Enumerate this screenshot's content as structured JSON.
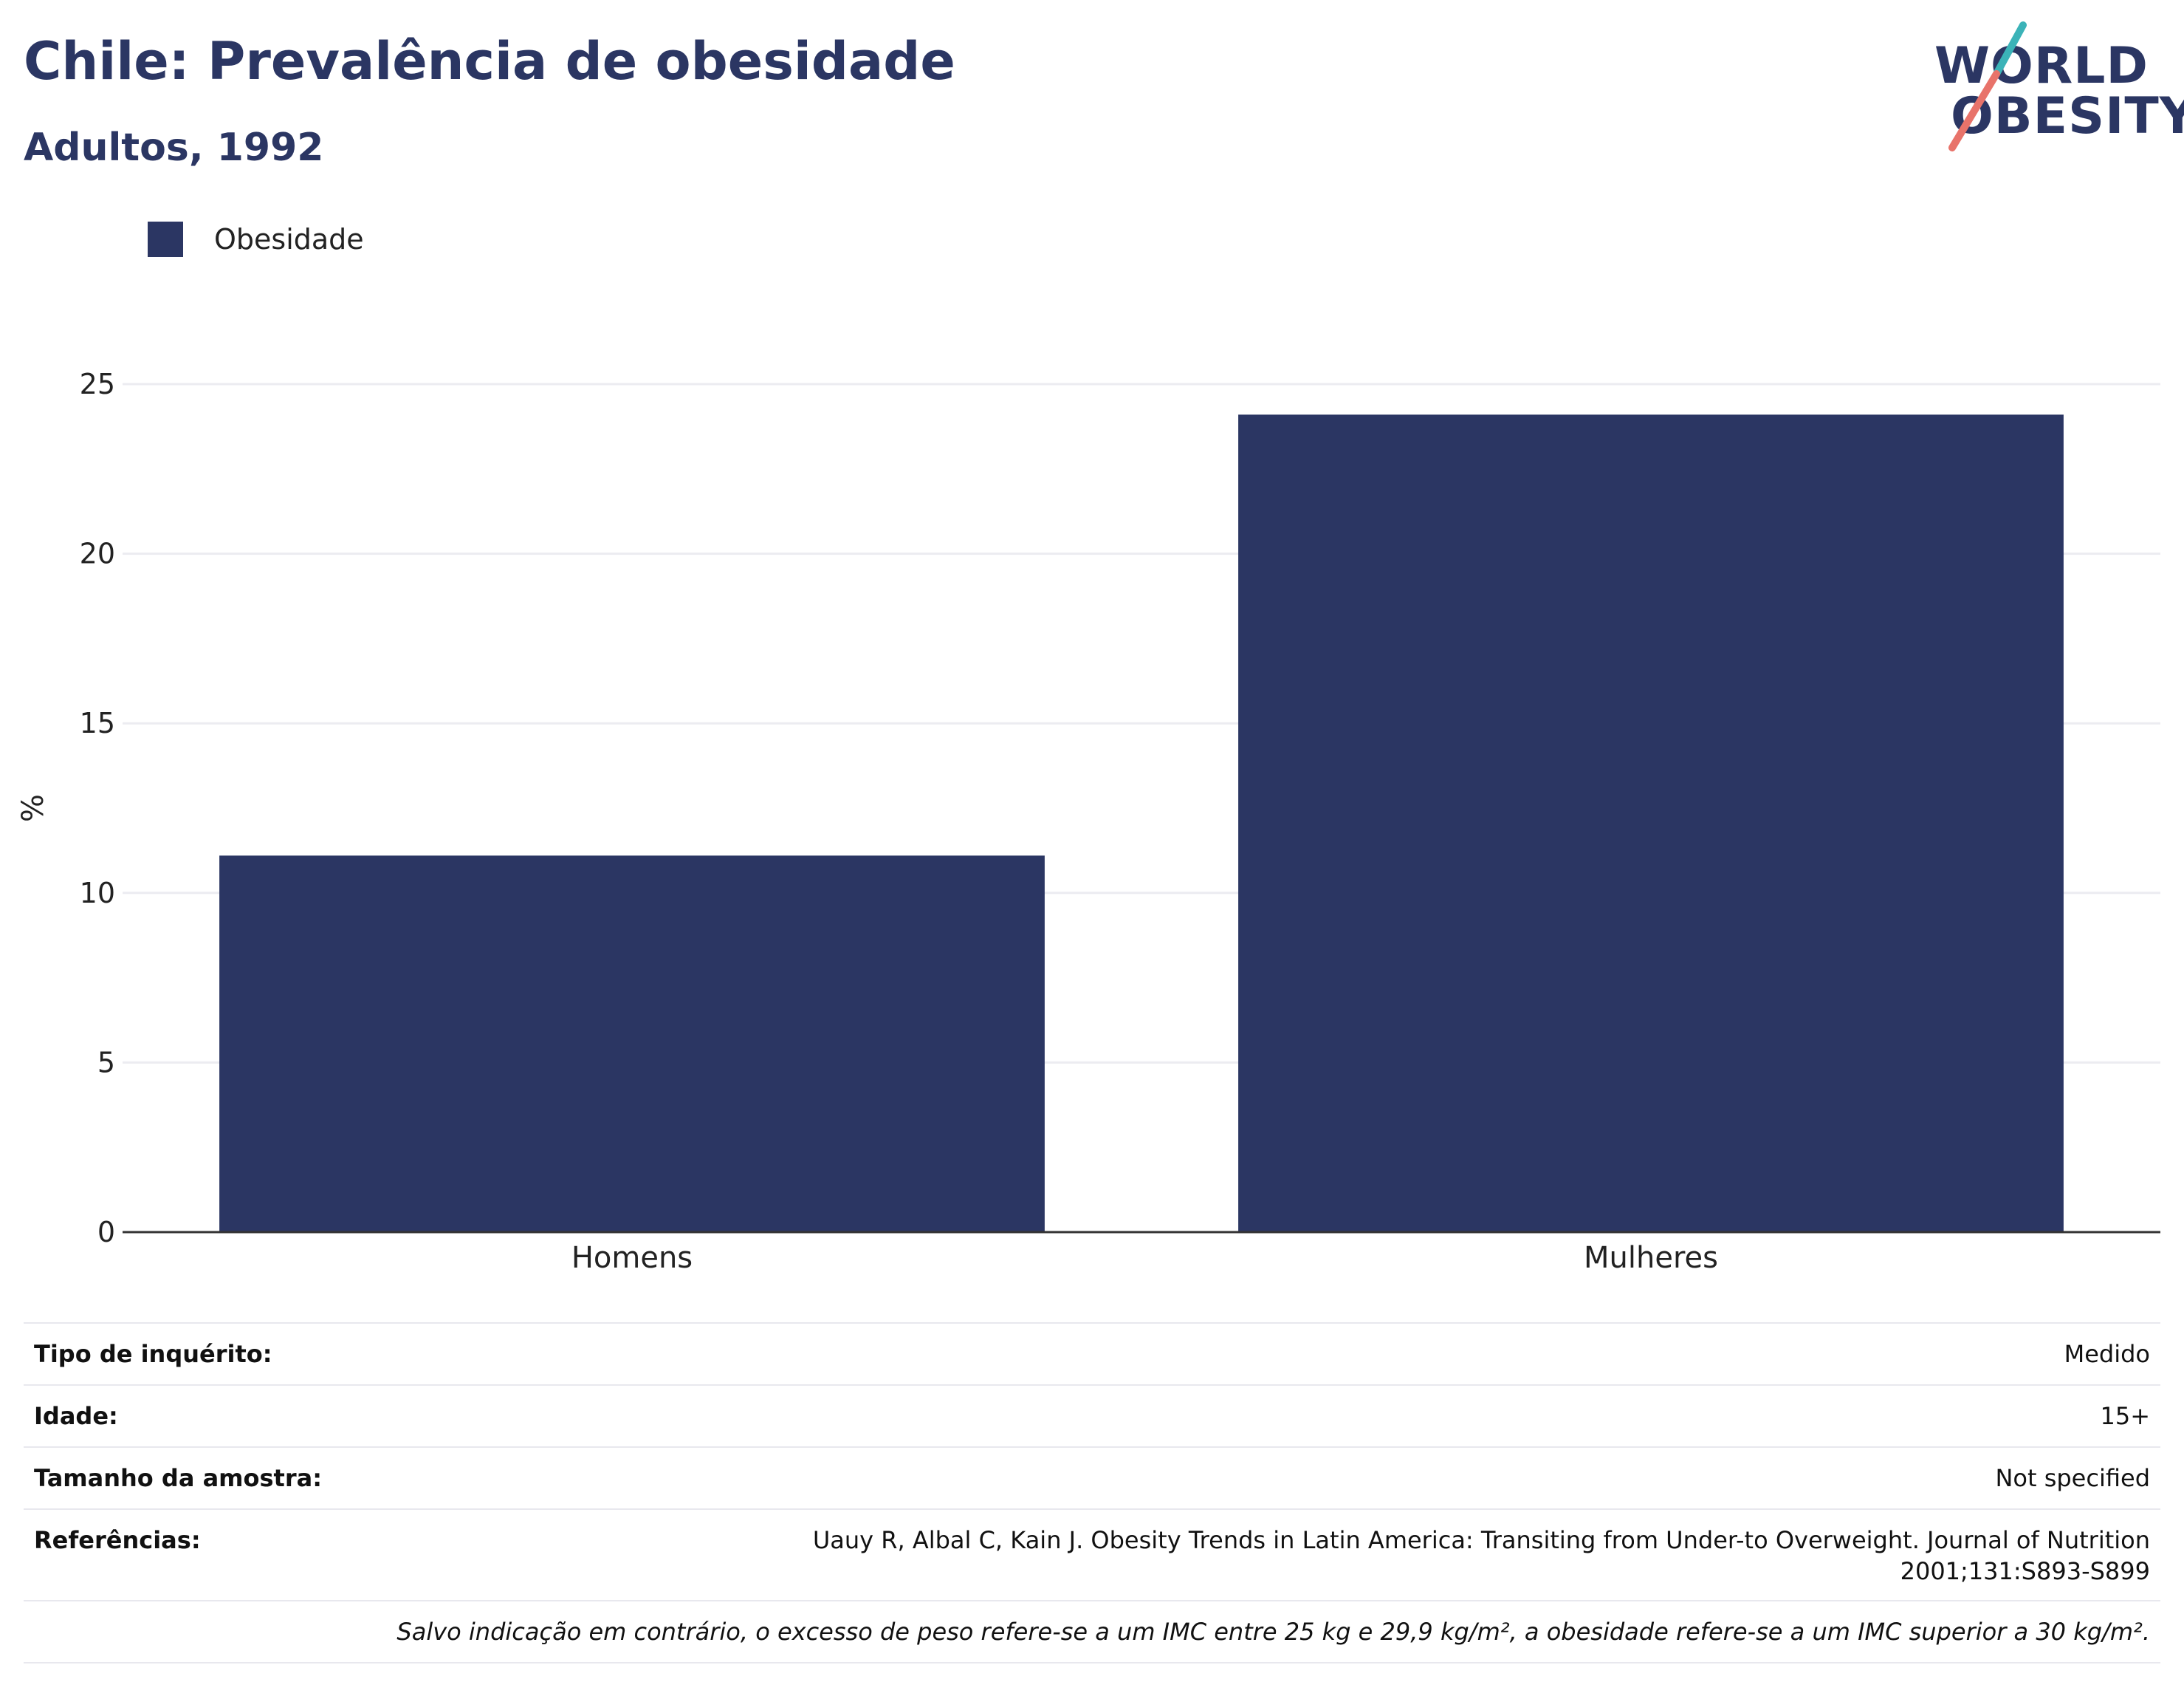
{
  "header": {
    "title": "Chile: Prevalência de obesidade",
    "subtitle": "Adultos, 1992"
  },
  "logo": {
    "line1": "WORLD",
    "line2": "OBESITY"
  },
  "colors": {
    "bar": "#2b3663",
    "title": "#2b3663",
    "logo_teal": "#3bb3b8",
    "logo_coral": "#e8736a",
    "grid": "#ececf1",
    "axis": "#333333"
  },
  "legend": {
    "label": "Obesidade"
  },
  "chart_data": {
    "type": "bar",
    "categories": [
      "Homens",
      "Mulheres"
    ],
    "series": [
      {
        "name": "Obesidade",
        "values": [
          11.1,
          24.1
        ]
      }
    ],
    "ylabel": "%",
    "xlabel": "",
    "ylim": [
      0,
      25
    ],
    "yticks": [
      0,
      5,
      10,
      15,
      20,
      25
    ],
    "grid": true,
    "legend_position": "top-left"
  },
  "info": {
    "survey_type_label": "Tipo de inquérito:",
    "survey_type_value": "Medido",
    "age_label": "Idade:",
    "age_value": "15+",
    "sample_label": "Tamanho da amostra:",
    "sample_value": "Not specified",
    "references_label": "Referências:",
    "references_value": "Uauy R, Albal C, Kain J. Obesity Trends in Latin America: Transiting from Under-to Overweight. Journal of Nutrition 2001;131:S893-S899",
    "footnote": "Salvo indicação em contrário, o excesso de peso refere-se a um IMC entre 25 kg e 29,9 kg/m², a obesidade refere-se a um IMC superior a 30 kg/m²."
  }
}
